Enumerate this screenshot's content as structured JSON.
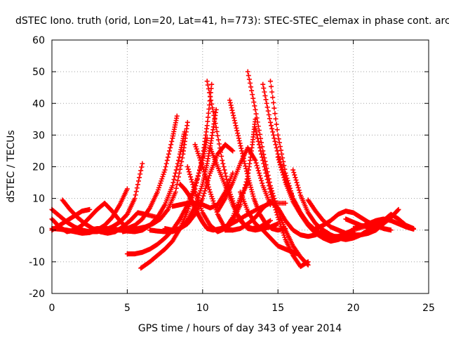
{
  "chart_data": {
    "type": "scatter",
    "title": "dSTEC Iono. truth (orid, Lon=20, Lat=41, h=773): STEC-STEC_elemax in phase cont. arc",
    "xlabel": "GPS time / hours of day 343 of year 2014",
    "ylabel": "dSTEC  / TECUs",
    "xlim": [
      0,
      25
    ],
    "ylim": [
      -20,
      60
    ],
    "xticks": [
      0,
      5,
      10,
      15,
      20,
      25
    ],
    "yticks": [
      -20,
      -10,
      0,
      10,
      20,
      30,
      40,
      50,
      60
    ],
    "grid": true,
    "marker": "+",
    "color": "#ff0000",
    "series": [
      {
        "x": [
          0.0,
          0.5,
          1.0,
          1.5,
          2.0,
          2.5,
          3.0,
          3.5,
          4.0,
          4.5,
          5.0
        ],
        "y": [
          0.5,
          0.3,
          0.0,
          -0.5,
          -1.0,
          -0.8,
          0.0,
          1.5,
          4.0,
          8.0,
          13.0
        ]
      },
      {
        "x": [
          0.0,
          0.5,
          1.0,
          1.5,
          2.0,
          2.5,
          3.0,
          3.5,
          4.0,
          4.5,
          5.0,
          5.5,
          6.0
        ],
        "y": [
          6.5,
          4.5,
          2.5,
          1.0,
          0.0,
          -0.5,
          -0.5,
          0.0,
          1.0,
          2.5,
          5.0,
          10.0,
          21.0
        ]
      },
      {
        "x": [
          0.0,
          0.5,
          1.0,
          1.5,
          2.0,
          2.5,
          3.0,
          3.5,
          4.0,
          4.5,
          5.0
        ],
        "y": [
          3.5,
          1.0,
          -0.5,
          0.0,
          1.5,
          4.0,
          6.5,
          8.5,
          6.0,
          3.0,
          0.5
        ]
      },
      {
        "x": [
          0.0,
          0.5,
          1.0,
          1.5,
          2.0,
          2.5
        ],
        "y": [
          0.0,
          1.5,
          3.0,
          4.5,
          6.0,
          6.5
        ]
      },
      {
        "x": [
          0.7,
          1.2,
          1.7,
          2.2,
          2.7,
          3.2,
          3.7,
          4.2,
          4.7,
          5.2,
          5.7,
          6.2,
          7.0
        ],
        "y": [
          9.5,
          6.5,
          4.0,
          2.0,
          0.5,
          -0.5,
          -1.0,
          -0.5,
          1.0,
          3.0,
          5.5,
          5.0,
          4.0
        ]
      },
      {
        "x": [
          2.5,
          3.0,
          3.5,
          4.0,
          4.5,
          5.0,
          5.5,
          6.0,
          6.5,
          7.0,
          7.5,
          8.0,
          8.3
        ],
        "y": [
          0.0,
          0.5,
          0.5,
          0.5,
          0.0,
          0.5,
          1.5,
          3.5,
          7.0,
          12.0,
          19.0,
          29.0,
          36.0
        ]
      },
      {
        "x": [
          3.5,
          4.0,
          4.5,
          5.0,
          5.5,
          6.0,
          6.5,
          7.0,
          7.5,
          8.0,
          8.5,
          8.8
        ],
        "y": [
          0.0,
          0.0,
          0.0,
          -0.3,
          -0.5,
          0.0,
          1.5,
          4.0,
          8.0,
          14.0,
          24.0,
          31.0
        ]
      },
      {
        "x": [
          4.7,
          5.2,
          5.7,
          6.2,
          6.7,
          7.2,
          7.7,
          8.2,
          8.7,
          9.0
        ],
        "y": [
          -0.5,
          0.0,
          0.5,
          1.0,
          2.0,
          3.5,
          6.5,
          12.0,
          24.0,
          34.0
        ]
      },
      {
        "x": [
          5.0,
          5.5,
          6.0,
          6.5,
          7.0,
          7.5,
          8.0,
          8.5,
          9.0,
          9.5,
          10.0,
          10.3
        ],
        "y": [
          -7.5,
          -7.5,
          -7.0,
          -6.0,
          -4.5,
          -2.5,
          0.0,
          3.5,
          8.0,
          14.0,
          22.0,
          29.0
        ]
      },
      {
        "x": [
          5.9,
          6.5,
          7.0,
          7.5,
          8.0,
          8.5,
          9.0,
          9.5,
          10.0,
          10.3,
          10.6
        ],
        "y": [
          -12.0,
          -10.0,
          -8.0,
          -6.0,
          -3.5,
          0.5,
          6.0,
          13.0,
          23.0,
          33.0,
          46.0
        ]
      },
      {
        "x": [
          6.5,
          7.0,
          7.5,
          8.0,
          8.5,
          9.0,
          9.5,
          10.0,
          10.3,
          10.6,
          10.9
        ],
        "y": [
          0.0,
          -0.3,
          -0.5,
          -0.5,
          0.5,
          3.0,
          7.5,
          14.5,
          21.0,
          29.0,
          38.0
        ]
      },
      {
        "x": [
          7.5,
          8.0,
          8.5,
          9.0,
          9.5,
          10.0,
          10.5,
          11.0,
          11.5,
          12.0
        ],
        "y": [
          0.5,
          0.0,
          0.5,
          2.0,
          5.0,
          10.0,
          18.0,
          24.0,
          27.0,
          25.0
        ]
      },
      {
        "x": [
          8.0,
          8.5,
          9.0,
          9.5,
          10.0,
          10.5,
          11.0,
          11.5,
          12.0
        ],
        "y": [
          7.5,
          8.0,
          8.5,
          8.5,
          8.0,
          7.0,
          8.0,
          12.0,
          18.0
        ]
      },
      {
        "x": [
          8.5,
          8.8,
          9.1,
          9.4,
          9.7,
          10.0,
          10.3,
          10.7,
          11.2,
          11.7,
          12.3,
          13.0,
          13.8,
          14.5,
          15.5
        ],
        "y": [
          14.5,
          13.0,
          11.0,
          8.0,
          5.0,
          2.5,
          0.5,
          0.0,
          0.5,
          1.5,
          3.0,
          5.0,
          7.0,
          8.5,
          8.5
        ]
      },
      {
        "x": [
          9.0,
          9.5,
          10.0,
          10.5,
          11.0,
          11.5,
          12.0,
          12.5,
          13.0
        ],
        "y": [
          20.0,
          12.0,
          5.5,
          1.5,
          -0.5,
          0.5,
          4.0,
          10.0,
          15.0
        ]
      },
      {
        "x": [
          9.5,
          10.0,
          10.5,
          11.0,
          11.5,
          12.0
        ],
        "y": [
          27.0,
          20.0,
          12.0,
          5.0,
          0.5,
          0.0
        ]
      },
      {
        "x": [
          10.3,
          10.8,
          11.3,
          11.8,
          12.3,
          12.8,
          13.3,
          13.8,
          14.5
        ],
        "y": [
          47.0,
          35.0,
          22.0,
          12.0,
          5.0,
          1.5,
          0.5,
          1.0,
          3.0
        ]
      },
      {
        "x": [
          10.5,
          11.0,
          11.5,
          12.0,
          12.5,
          13.0,
          13.5,
          14.0,
          14.5,
          15.0
        ],
        "y": [
          26.0,
          20.0,
          14.0,
          8.0,
          3.0,
          0.5,
          0.0,
          0.5,
          1.0,
          2.0
        ]
      },
      {
        "x": [
          11.8,
          12.2,
          12.6,
          13.0,
          13.4,
          13.8,
          14.2,
          14.6,
          15.0,
          15.5
        ],
        "y": [
          41.0,
          33.0,
          25.0,
          17.0,
          10.0,
          5.0,
          2.0,
          0.5,
          0.0,
          0.5
        ]
      },
      {
        "x": [
          11.5,
          12.0,
          12.5,
          13.0,
          13.3,
          13.5
        ],
        "y": [
          0.0,
          3.0,
          8.0,
          17.0,
          27.0,
          35.0
        ]
      },
      {
        "x": [
          11.5,
          12.0,
          12.5,
          13.0,
          13.5,
          14.0,
          14.5,
          15.0,
          15.5,
          16.0,
          16.5,
          17.0,
          17.5,
          18.0
        ],
        "y": [
          0.0,
          0.0,
          0.5,
          2.0,
          4.0,
          7.0,
          9.0,
          7.0,
          3.0,
          0.0,
          -1.5,
          -2.0,
          -1.5,
          0.0
        ]
      },
      {
        "x": [
          11.0,
          11.5,
          12.0,
          12.5,
          13.0,
          13.5,
          14.0,
          14.5
        ],
        "y": [
          6.0,
          10.0,
          15.0,
          21.0,
          26.0,
          22.0,
          14.0,
          8.0
        ]
      },
      {
        "x": [
          12.5,
          13.0,
          13.5,
          14.0,
          14.5,
          15.0,
          15.5,
          16.0,
          16.3
        ],
        "y": [
          12.0,
          6.0,
          2.0,
          0.0,
          -2.5,
          -5.0,
          -6.0,
          -7.0,
          -7.5
        ]
      },
      {
        "x": [
          13.0,
          13.5,
          14.0,
          14.5,
          15.0,
          15.5,
          16.0,
          16.5,
          17.0
        ],
        "y": [
          50.0,
          38.0,
          25.0,
          14.0,
          6.0,
          0.0,
          -5.0,
          -8.5,
          -11.0
        ]
      },
      {
        "x": [
          13.5,
          14.0,
          14.5,
          15.0,
          15.5,
          16.0,
          16.5,
          17.0
        ],
        "y": [
          32.0,
          22.0,
          12.0,
          4.0,
          -3.0,
          -8.0,
          -11.5,
          -10.0
        ]
      },
      {
        "x": [
          14.0,
          14.5,
          15.0,
          15.5,
          16.0,
          16.5,
          17.0,
          17.5,
          18.0,
          18.5,
          19.0
        ],
        "y": [
          46.0,
          34.0,
          24.0,
          16.0,
          10.0,
          5.5,
          2.0,
          0.0,
          -1.5,
          -2.5,
          -2.0
        ]
      },
      {
        "x": [
          14.5,
          15.0,
          15.5,
          16.0,
          16.5,
          17.0,
          17.5,
          18.0,
          18.5,
          19.0,
          19.5,
          20.0
        ],
        "y": [
          47.0,
          30.0,
          18.0,
          10.0,
          5.0,
          1.5,
          -1.0,
          -2.5,
          -3.5,
          -3.0,
          -2.0,
          -0.5
        ]
      },
      {
        "x": [
          15.0,
          15.5,
          16.0,
          16.5,
          17.0,
          17.5,
          18.0,
          18.5,
          19.0,
          19.5,
          20.0,
          21.0
        ],
        "y": [
          23.0,
          15.0,
          9.0,
          5.0,
          2.0,
          0.0,
          -1.5,
          -2.0,
          -2.0,
          -1.0,
          0.0,
          1.5
        ]
      },
      {
        "x": [
          16.0,
          16.5,
          17.0,
          17.5,
          18.0,
          18.5,
          19.0,
          19.5,
          20.0,
          20.5,
          21.0,
          21.5,
          22.0
        ],
        "y": [
          19.0,
          11.0,
          5.5,
          2.0,
          0.0,
          -1.5,
          -2.5,
          -3.0,
          -2.5,
          -1.5,
          0.0,
          1.5,
          3.0
        ]
      },
      {
        "x": [
          17.0,
          17.5,
          18.0,
          18.5,
          19.0,
          19.5,
          20.0,
          20.5,
          21.0,
          21.5,
          22.0,
          22.5,
          23.0
        ],
        "y": [
          9.5,
          6.0,
          3.0,
          1.0,
          0.0,
          -1.0,
          -1.5,
          -1.5,
          -1.0,
          0.0,
          2.0,
          4.0,
          6.5
        ]
      },
      {
        "x": [
          17.5,
          18.0,
          18.5,
          19.0,
          19.5,
          20.0,
          20.5,
          21.0,
          21.5,
          22.0,
          22.5
        ],
        "y": [
          0.5,
          1.5,
          3.0,
          5.0,
          6.0,
          5.5,
          4.0,
          2.5,
          1.5,
          0.5,
          0.0
        ]
      },
      {
        "x": [
          19.5,
          20.0,
          20.5,
          21.0,
          21.5,
          22.0,
          22.5,
          23.0,
          23.5,
          24.0
        ],
        "y": [
          3.5,
          2.5,
          1.5,
          1.0,
          1.5,
          3.0,
          5.0,
          3.5,
          1.5,
          0.5
        ]
      },
      {
        "x": [
          20.0,
          20.5,
          21.0,
          21.5,
          22.0,
          22.5,
          23.0,
          23.5,
          24.0
        ],
        "y": [
          0.5,
          1.0,
          2.0,
          3.0,
          3.5,
          3.0,
          2.0,
          1.0,
          0.3
        ]
      }
    ]
  }
}
